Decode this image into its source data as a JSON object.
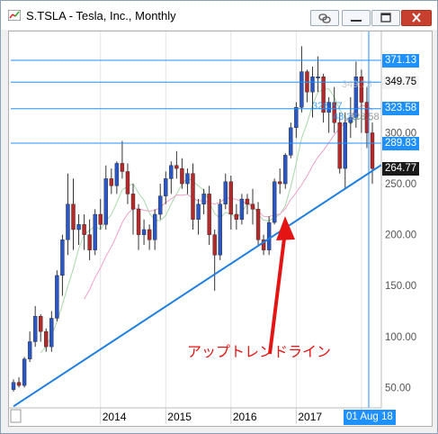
{
  "window": {
    "title": "S.TSLA - Tesla, Inc., Monthly",
    "link_icon": "link-icon",
    "minimize_icon": "minimize-icon",
    "maximize_icon": "maximize-icon",
    "close_icon": "close-icon"
  },
  "chart_data": {
    "type": "candlestick",
    "symbol": "S.TSLA",
    "timeframe": "Monthly",
    "y_axis": {
      "range": [
        30,
        395
      ],
      "ticks": [
        "300.00",
        "250.00",
        "200.00",
        "150.00",
        "100.00",
        "50.00"
      ],
      "tick_values": [
        300,
        250,
        200,
        150,
        100,
        50
      ]
    },
    "x_axis": {
      "labels": [
        "2014",
        "2015",
        "2016",
        "2017",
        "2017"
      ],
      "label_months": [
        16,
        28,
        40,
        52,
        64
      ]
    },
    "horizontal_lines": [
      {
        "label": "371.13",
        "value": 371.13,
        "style": "blue"
      },
      {
        "label": "349.75",
        "value": 349.75,
        "style": "light"
      },
      {
        "label": "323.58",
        "value": 323.58,
        "style": "blue"
      },
      {
        "label": "289.83",
        "value": 289.83,
        "style": "blue"
      }
    ],
    "current_price": {
      "label": "264.77",
      "value": 264.77
    },
    "crosshair_date": "01 Aug 18",
    "overlay_labels": [
      "349.75",
      "326.57",
      "48.33",
      "323.58"
    ],
    "trendline": {
      "label": "アップトレンドライン",
      "start": {
        "month": 0,
        "value": 35
      },
      "end": {
        "month": 68,
        "value": 272
      }
    },
    "candles": [
      [
        48,
        58,
        46,
        55
      ],
      [
        55,
        60,
        50,
        52
      ],
      [
        52,
        80,
        50,
        78
      ],
      [
        78,
        105,
        75,
        95
      ],
      [
        95,
        130,
        90,
        120
      ],
      [
        120,
        122,
        95,
        105
      ],
      [
        105,
        108,
        85,
        90
      ],
      [
        90,
        125,
        85,
        118
      ],
      [
        118,
        165,
        115,
        160
      ],
      [
        160,
        200,
        140,
        195
      ],
      [
        195,
        260,
        180,
        230
      ],
      [
        230,
        255,
        185,
        205
      ],
      [
        205,
        220,
        190,
        210
      ],
      [
        210,
        220,
        185,
        200
      ],
      [
        200,
        215,
        175,
        185
      ],
      [
        185,
        225,
        180,
        220
      ],
      [
        220,
        235,
        205,
        210
      ],
      [
        210,
        268,
        205,
        255
      ],
      [
        255,
        265,
        240,
        248
      ],
      [
        248,
        272,
        240,
        270
      ],
      [
        270,
        292,
        255,
        262
      ],
      [
        262,
        270,
        230,
        240
      ],
      [
        240,
        250,
        200,
        225
      ],
      [
        225,
        230,
        185,
        200
      ],
      [
        200,
        215,
        190,
        205
      ],
      [
        205,
        210,
        185,
        195
      ],
      [
        195,
        225,
        185,
        220
      ],
      [
        220,
        250,
        215,
        238
      ],
      [
        238,
        262,
        230,
        255
      ],
      [
        255,
        272,
        240,
        268
      ],
      [
        268,
        282,
        255,
        265
      ],
      [
        265,
        275,
        245,
        250
      ],
      [
        250,
        265,
        240,
        260
      ],
      [
        260,
        270,
        205,
        215
      ],
      [
        215,
        235,
        200,
        230
      ],
      [
        230,
        245,
        220,
        240
      ],
      [
        240,
        248,
        190,
        200
      ],
      [
        200,
        205,
        145,
        180
      ],
      [
        180,
        235,
        175,
        230
      ],
      [
        230,
        260,
        225,
        252
      ],
      [
        252,
        258,
        205,
        220
      ],
      [
        220,
        230,
        205,
        215
      ],
      [
        215,
        240,
        210,
        235
      ],
      [
        235,
        240,
        220,
        230
      ],
      [
        230,
        245,
        210,
        225
      ],
      [
        225,
        232,
        190,
        195
      ],
      [
        195,
        200,
        180,
        185
      ],
      [
        185,
        218,
        180,
        212
      ],
      [
        212,
        255,
        210,
        252
      ],
      [
        252,
        265,
        240,
        250
      ],
      [
        250,
        280,
        245,
        278
      ],
      [
        278,
        310,
        275,
        305
      ],
      [
        305,
        330,
        295,
        325
      ],
      [
        325,
        385,
        320,
        360
      ],
      [
        360,
        362,
        330,
        340
      ],
      [
        340,
        365,
        315,
        355
      ],
      [
        355,
        375,
        340,
        355
      ],
      [
        355,
        358,
        310,
        320
      ],
      [
        320,
        335,
        300,
        330
      ],
      [
        330,
        345,
        300,
        310
      ],
      [
        310,
        320,
        260,
        265
      ],
      [
        265,
        320,
        245,
        310
      ],
      [
        310,
        335,
        295,
        315
      ],
      [
        315,
        370,
        305,
        355
      ],
      [
        355,
        362,
        300,
        330
      ],
      [
        330,
        345,
        285,
        300
      ],
      [
        300,
        310,
        250,
        265
      ]
    ]
  }
}
